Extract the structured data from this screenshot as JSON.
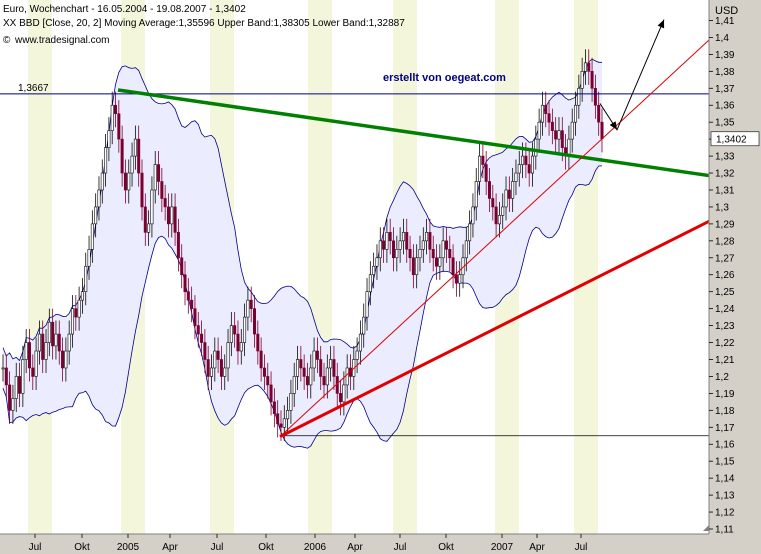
{
  "chart_data": {
    "type": "candlestick",
    "title_line": "Euro, Wochenchart - 16.05.2004 - 19.08.2007 - 1,3402",
    "indicator_line": "XX BBD [Close, 20, 2] Moving Average:1,35596 Upper Band:1,38305 Lower Band:1,32887",
    "source_label": "www.tradesignal.com",
    "copyright_symbol": "©",
    "annotation": "erstellt von oegeat.com",
    "currency_label": "USD",
    "y_range": [
      1.11,
      1.415
    ],
    "y_ticks": [
      "1,41",
      "1,4",
      "1,39",
      "1,38",
      "1,37",
      "1,36",
      "1,35",
      "1,34",
      "1,33",
      "1,32",
      "1,31",
      "1,3",
      "1,29",
      "1,28",
      "1,27",
      "1,26",
      "1,25",
      "1,24",
      "1,23",
      "1,22",
      "1,21",
      "1,2",
      "1,19",
      "1,18",
      "1,17",
      "1,16",
      "1,15",
      "1,14",
      "1,13",
      "1,12",
      "1,11"
    ],
    "x_ticks": [
      "Jul",
      "Okt",
      "2005",
      "Apr",
      "Jul",
      "Okt",
      "2006",
      "Apr",
      "Jul",
      "Okt",
      "2007",
      "Apr",
      "Jul"
    ],
    "horizontal_line": {
      "value": 1.3667,
      "label": "1,3667"
    },
    "support_line": {
      "value": 1.165
    },
    "last_price": {
      "value": 1.3402,
      "label": "1,3402"
    },
    "colors": {
      "background": "#ffffff",
      "band_fill": "#ececff",
      "band_line": "#00008b",
      "candle_up": "#0a0a0a",
      "candle_down": "#7a0030",
      "green_trend": "#008000",
      "red_trend": "#e00000",
      "stripe": "#f4f6dc",
      "hline": "#000080"
    },
    "closes": [
      1.205,
      1.195,
      1.18,
      1.187,
      1.2,
      1.19,
      1.21,
      1.22,
      1.205,
      1.2,
      1.215,
      1.225,
      1.21,
      1.22,
      1.232,
      1.218,
      1.225,
      1.215,
      1.205,
      1.215,
      1.225,
      1.24,
      1.235,
      1.245,
      1.25,
      1.265,
      1.275,
      1.29,
      1.3,
      1.31,
      1.32,
      1.335,
      1.345,
      1.36,
      1.355,
      1.34,
      1.32,
      1.31,
      1.32,
      1.33,
      1.34,
      1.32,
      1.3,
      1.285,
      1.29,
      1.31,
      1.325,
      1.315,
      1.305,
      1.3,
      1.29,
      1.3,
      1.285,
      1.27,
      1.26,
      1.25,
      1.245,
      1.24,
      1.23,
      1.225,
      1.22,
      1.21,
      1.2,
      1.205,
      1.215,
      1.21,
      1.2,
      1.205,
      1.22,
      1.23,
      1.225,
      1.215,
      1.22,
      1.235,
      1.245,
      1.24,
      1.225,
      1.215,
      1.205,
      1.2,
      1.195,
      1.185,
      1.178,
      1.172,
      1.17,
      1.175,
      1.18,
      1.19,
      1.2,
      1.21,
      1.205,
      1.2,
      1.195,
      1.205,
      1.215,
      1.21,
      1.2,
      1.195,
      1.205,
      1.21,
      1.2,
      1.19,
      1.185,
      1.195,
      1.205,
      1.2,
      1.21,
      1.215,
      1.225,
      1.235,
      1.25,
      1.26,
      1.265,
      1.27,
      1.28,
      1.275,
      1.285,
      1.28,
      1.27,
      1.275,
      1.28,
      1.285,
      1.275,
      1.27,
      1.26,
      1.27,
      1.275,
      1.28,
      1.285,
      1.275,
      1.27,
      1.265,
      1.27,
      1.28,
      1.275,
      1.27,
      1.26,
      1.255,
      1.26,
      1.27,
      1.28,
      1.29,
      1.3,
      1.315,
      1.33,
      1.325,
      1.315,
      1.305,
      1.3,
      1.29,
      1.295,
      1.3,
      1.31,
      1.305,
      1.315,
      1.32,
      1.325,
      1.33,
      1.325,
      1.32,
      1.33,
      1.34,
      1.35,
      1.36,
      1.355,
      1.35,
      1.345,
      1.34,
      1.345,
      1.335,
      1.33,
      1.34,
      1.35,
      1.36,
      1.37,
      1.38,
      1.385,
      1.38,
      1.37,
      1.36,
      1.35,
      1.3402
    ]
  }
}
